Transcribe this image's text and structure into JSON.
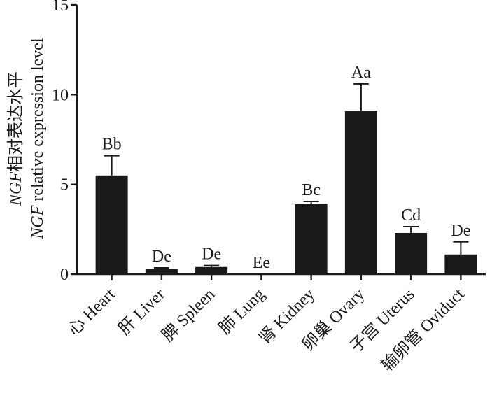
{
  "chart_data": {
    "type": "bar",
    "ylabel_line1_italic": "NGF",
    "ylabel_line1_rest": "相对表达水平",
    "ylabel_line2_italic": "NGF",
    "ylabel_line2_rest": " relative expression level",
    "ylim": [
      0,
      15
    ],
    "yticks": [
      0,
      5,
      10,
      15
    ],
    "categories": [
      "心 Heart",
      "肝 Liver",
      "脾 Spleen",
      "肺 Lung",
      "肾 Kidney",
      "卵巢 Ovary",
      "子宫 Uterus",
      "输卵管 Oviduct"
    ],
    "values": [
      5.5,
      0.3,
      0.4,
      0.0,
      3.9,
      9.1,
      2.3,
      1.1
    ],
    "errors": [
      1.1,
      0.05,
      0.08,
      0.0,
      0.15,
      1.5,
      0.35,
      0.7
    ],
    "significance_labels": [
      "Bb",
      "De",
      "De",
      "Ee",
      "Bc",
      "Aa",
      "Cd",
      "De"
    ],
    "bar_color": "#1a1a1a",
    "grid": false,
    "legend": "none"
  }
}
